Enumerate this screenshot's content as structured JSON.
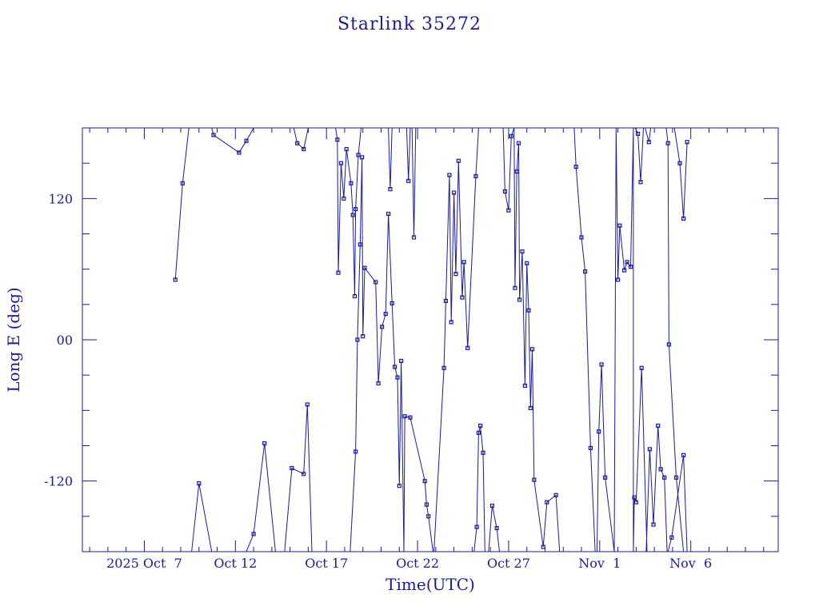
{
  "chart_data": {
    "type": "scatter",
    "title": "Starlink 35272",
    "xlabel": "Time(UTC)",
    "ylabel": "Long E (deg)",
    "x_tick_labels": [
      "2025 Oct  7",
      "Oct 12",
      "Oct 17",
      "Oct 22",
      "Oct 27",
      "Nov  1",
      "Nov  6"
    ],
    "x_tick_days": [
      7,
      12,
      17,
      22,
      27,
      32,
      37
    ],
    "xlim_days": [
      3.6,
      41.8
    ],
    "y_tick_labels": [
      "-120",
      "00",
      "120"
    ],
    "y_tick_values": [
      -120,
      0,
      120
    ],
    "ylim": [
      -180,
      180
    ],
    "grid": false,
    "color": "#1a1a9c",
    "series": [
      {
        "values": [
          [
            8.7,
            51
          ],
          [
            9.1,
            133
          ],
          [
            9.45,
            180
          ],
          [
            10.7,
            180
          ],
          [
            10.8,
            174
          ],
          [
            12.2,
            159
          ],
          [
            12.6,
            169
          ],
          [
            13.0,
            180
          ],
          [
            15.2,
            180
          ],
          [
            15.4,
            167
          ],
          [
            15.75,
            162
          ],
          [
            16.0,
            180
          ],
          [
            17.5,
            180
          ],
          [
            17.6,
            170
          ],
          [
            17.65,
            57
          ],
          [
            17.8,
            150
          ],
          [
            17.95,
            120
          ],
          [
            18.1,
            162
          ],
          [
            18.35,
            133
          ],
          [
            18.45,
            106
          ],
          [
            18.55,
            37
          ],
          [
            18.6,
            111
          ],
          [
            18.75,
            157
          ],
          [
            18.9,
            180
          ],
          [
            20.4,
            180
          ],
          [
            20.5,
            128
          ],
          [
            20.6,
            180
          ],
          [
            21.4,
            180
          ],
          [
            21.5,
            135
          ],
          [
            21.6,
            180
          ],
          [
            21.7,
            180
          ],
          [
            21.8,
            87
          ],
          [
            21.9,
            180
          ]
        ]
      },
      {
        "values": [
          [
            9.6,
            -180
          ],
          [
            10.0,
            -122
          ],
          [
            10.7,
            -180
          ],
          [
            12.6,
            -180
          ],
          [
            13.0,
            -165
          ],
          [
            13.6,
            -88
          ],
          [
            14.2,
            -180
          ],
          [
            14.7,
            -180
          ],
          [
            15.1,
            -109
          ],
          [
            15.75,
            -114
          ],
          [
            15.95,
            -55
          ],
          [
            16.2,
            -180
          ],
          [
            17.6,
            -180
          ],
          [
            18.3,
            -180
          ],
          [
            18.6,
            -95
          ],
          [
            18.7,
            0
          ],
          [
            18.85,
            81
          ],
          [
            18.95,
            155
          ],
          [
            19.0,
            3
          ],
          [
            19.1,
            61
          ],
          [
            19.7,
            49
          ],
          [
            19.85,
            -37
          ],
          [
            20.05,
            11
          ],
          [
            20.25,
            22
          ],
          [
            20.4,
            107
          ],
          [
            20.6,
            31
          ],
          [
            20.75,
            -23
          ],
          [
            20.9,
            -32
          ],
          [
            21.0,
            -124
          ],
          [
            21.1,
            -18
          ],
          [
            21.25,
            -180
          ]
        ]
      },
      {
        "values": [
          [
            21.25,
            -180
          ],
          [
            21.3,
            -65
          ],
          [
            21.6,
            -66
          ],
          [
            22.4,
            -120
          ],
          [
            22.5,
            -140
          ],
          [
            22.6,
            -150
          ],
          [
            22.85,
            -180
          ],
          [
            22.9,
            -180
          ],
          [
            23.45,
            -24
          ],
          [
            23.55,
            33
          ],
          [
            23.75,
            140
          ],
          [
            23.85,
            15
          ],
          [
            24.0,
            125
          ],
          [
            24.1,
            56
          ],
          [
            24.25,
            152
          ],
          [
            24.45,
            36
          ],
          [
            24.55,
            66
          ],
          [
            24.75,
            -7
          ],
          [
            25.2,
            139
          ],
          [
            25.35,
            180
          ]
        ]
      },
      {
        "values": [
          [
            25.1,
            -180
          ],
          [
            25.25,
            -159
          ],
          [
            25.35,
            -79
          ],
          [
            25.45,
            -73
          ],
          [
            25.6,
            -96
          ],
          [
            25.7,
            -180
          ],
          [
            25.9,
            -180
          ],
          [
            26.1,
            -141
          ],
          [
            26.35,
            -160
          ],
          [
            26.5,
            -180
          ]
        ]
      },
      {
        "values": [
          [
            26.7,
            180
          ],
          [
            26.8,
            126
          ],
          [
            27.0,
            110
          ],
          [
            27.15,
            173
          ],
          [
            27.3,
            180
          ],
          [
            27.35,
            44
          ],
          [
            27.45,
            143
          ],
          [
            27.55,
            167
          ],
          [
            27.6,
            34
          ],
          [
            27.75,
            75
          ],
          [
            27.9,
            -39
          ],
          [
            28.0,
            65
          ],
          [
            28.1,
            25
          ],
          [
            28.2,
            -58
          ],
          [
            28.3,
            -8
          ],
          [
            28.4,
            -119
          ],
          [
            28.9,
            -176
          ],
          [
            29.1,
            -138
          ],
          [
            29.6,
            -132
          ],
          [
            29.8,
            -180
          ]
        ]
      },
      {
        "values": [
          [
            30.6,
            180
          ],
          [
            30.7,
            147
          ],
          [
            31.0,
            87
          ],
          [
            31.2,
            58
          ],
          [
            31.5,
            -92
          ],
          [
            31.75,
            -180
          ],
          [
            31.85,
            -180
          ],
          [
            31.95,
            -78
          ],
          [
            32.1,
            -21
          ],
          [
            32.3,
            -117
          ],
          [
            32.8,
            -180
          ],
          [
            32.9,
            180
          ],
          [
            33.0,
            51
          ],
          [
            33.1,
            97
          ],
          [
            33.35,
            59
          ],
          [
            33.5,
            66
          ],
          [
            33.7,
            62
          ],
          [
            33.85,
            180
          ],
          [
            33.85,
            -180
          ],
          [
            33.9,
            -134
          ],
          [
            34.0,
            -138
          ],
          [
            34.3,
            -24
          ],
          [
            34.6,
            -180
          ]
        ]
      },
      {
        "values": [
          [
            34.55,
            -180
          ],
          [
            34.75,
            -93
          ],
          [
            34.95,
            -157
          ],
          [
            35.2,
            -73
          ],
          [
            35.35,
            -110
          ],
          [
            35.55,
            -117
          ],
          [
            35.7,
            -180
          ],
          [
            35.75,
            -180
          ],
          [
            35.95,
            -168
          ],
          [
            36.6,
            -98
          ],
          [
            36.8,
            -180
          ]
        ]
      },
      {
        "values": [
          [
            33.95,
            180
          ],
          [
            34.1,
            175
          ],
          [
            34.25,
            134
          ],
          [
            34.4,
            180
          ],
          [
            34.5,
            180
          ],
          [
            34.7,
            168
          ],
          [
            34.8,
            180
          ],
          [
            35.65,
            180
          ],
          [
            35.75,
            167
          ],
          [
            35.8,
            -4
          ],
          [
            36.2,
            -117
          ],
          [
            36.6,
            -180
          ]
        ]
      },
      {
        "values": [
          [
            36.1,
            180
          ],
          [
            36.4,
            150
          ],
          [
            36.6,
            103
          ],
          [
            36.8,
            168
          ]
        ]
      }
    ]
  }
}
